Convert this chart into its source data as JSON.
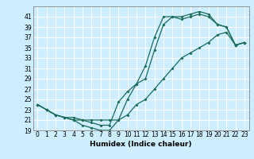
{
  "xlabel": "Humidex (Indice chaleur)",
  "bg_color": "#cceeff",
  "grid_color": "#ffffff",
  "line_color": "#1a6b5a",
  "marker": "D",
  "markersize": 2.0,
  "linewidth": 0.9,
  "ylim": [
    19,
    43
  ],
  "xlim": [
    -0.5,
    23.5
  ],
  "yticks": [
    19,
    21,
    23,
    25,
    27,
    29,
    31,
    33,
    35,
    37,
    39,
    41
  ],
  "xticks": [
    0,
    1,
    2,
    3,
    4,
    5,
    6,
    7,
    8,
    9,
    10,
    11,
    12,
    13,
    14,
    15,
    16,
    17,
    18,
    19,
    20,
    21,
    22,
    23
  ],
  "line1_x": [
    0,
    1,
    2,
    3,
    4,
    5,
    6,
    7,
    8,
    9,
    10,
    11,
    12,
    13,
    14,
    15,
    16,
    17,
    18,
    19,
    20,
    21,
    22,
    23
  ],
  "line1_y": [
    24,
    23,
    22,
    21.5,
    21,
    20,
    19.5,
    19,
    19,
    21,
    25,
    28,
    29,
    34.5,
    39.5,
    41,
    40.5,
    41,
    41.5,
    41,
    39.5,
    39,
    35.5,
    36
  ],
  "line2_x": [
    0,
    1,
    2,
    3,
    4,
    5,
    6,
    7,
    8,
    9,
    10,
    11,
    12,
    13,
    14,
    15,
    16,
    17,
    18,
    19,
    20,
    21,
    22,
    23
  ],
  "line2_y": [
    24,
    23,
    22,
    21.5,
    21.5,
    21,
    20.5,
    20,
    20,
    24.5,
    26.5,
    28,
    31.5,
    37,
    41,
    41,
    41,
    41.5,
    42,
    41.5,
    39.5,
    39,
    35.5,
    36
  ],
  "line3_x": [
    0,
    1,
    2,
    3,
    4,
    5,
    6,
    7,
    8,
    9,
    10,
    11,
    12,
    13,
    14,
    15,
    16,
    17,
    18,
    19,
    20,
    21,
    22,
    23
  ],
  "line3_y": [
    24,
    23,
    22,
    21.5,
    21,
    21,
    21,
    21,
    21,
    21,
    22,
    24,
    25,
    27,
    29,
    31,
    33,
    34,
    35,
    36,
    37.5,
    38,
    35.5,
    36
  ],
  "tick_fontsize": 5.5,
  "xlabel_fontsize": 6.5
}
